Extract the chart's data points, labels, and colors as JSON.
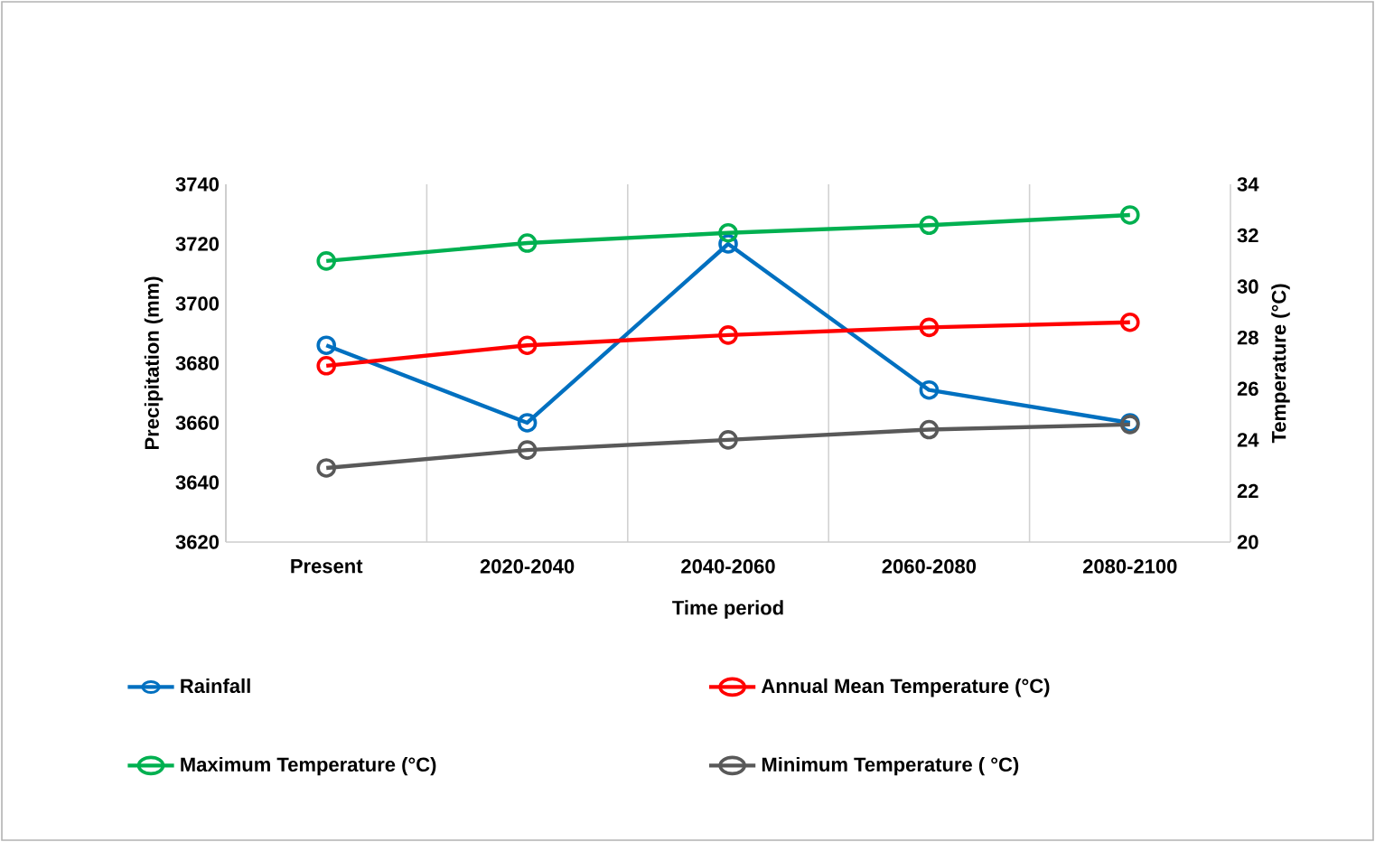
{
  "chart_data": {
    "type": "line",
    "xlabel": "Time period",
    "ylabel": "Precipitation (mm)",
    "y2label": "Temperature (°C)",
    "categories": [
      "Present",
      "2020-2040",
      "2040-2060",
      "2060-2080",
      "2080-2100"
    ],
    "series": [
      {
        "name": "Rainfall",
        "color": "#0070c0",
        "values": [
          3686,
          3660,
          3720,
          3671,
          3660
        ]
      },
      {
        "name": "Annual Mean Temperature (°C)",
        "color": "#ff0000",
        "axis": "y2",
        "values": [
          26.9,
          27.7,
          28.1,
          28.4,
          28.6
        ]
      },
      {
        "name": "Maximum Temperature (°C)",
        "color": "#00b050",
        "axis": "y2",
        "values": [
          31.0,
          31.7,
          32.1,
          32.4,
          32.8
        ]
      },
      {
        "name": "Minimum Temperature ( °C)",
        "color": "#595959",
        "axis": "y2",
        "values": [
          22.9,
          23.6,
          24.0,
          24.4,
          24.6
        ]
      }
    ],
    "ylim": [
      3620,
      3740
    ],
    "yticks": [
      3620,
      3640,
      3660,
      3680,
      3700,
      3720,
      3740
    ],
    "y2lim": [
      20,
      34
    ],
    "y2ticks": [
      20,
      22,
      24,
      26,
      28,
      30,
      32,
      34
    ],
    "grid": "x",
    "legend": "bottom",
    "marker": "circle",
    "line_style": "solid"
  }
}
